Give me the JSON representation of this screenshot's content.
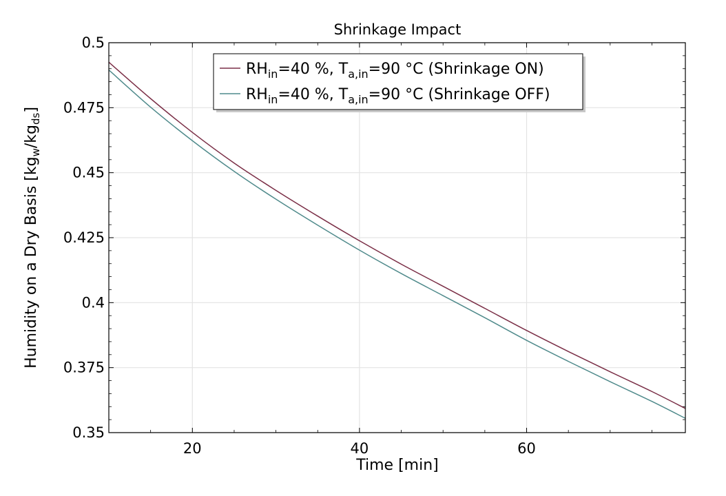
{
  "chart_data": {
    "type": "line",
    "title": "Shrinkage Impact",
    "xlabel": "Time [min]",
    "ylabel": {
      "main": "Humidity on a Dry Basis [kg",
      "sub1": "w",
      "mid": "/kg",
      "sub2": "ds",
      "end": "]"
    },
    "xlim": [
      10,
      79
    ],
    "ylim": [
      0.35,
      0.5
    ],
    "x_ticks": [
      20,
      40,
      60
    ],
    "x_tick_labels": [
      "20",
      "40",
      "60"
    ],
    "y_ticks": [
      0.35,
      0.375,
      0.4,
      0.425,
      0.45,
      0.475,
      0.5
    ],
    "y_tick_labels": [
      "0.35",
      "0.375",
      "0.4",
      "0.425",
      "0.45",
      "0.475",
      "0.5"
    ],
    "grid": true,
    "legend_position": "top-center",
    "series": [
      {
        "name": "RH_in=40 %, T_a,in=90 °C (Shrinkage ON)",
        "legend": {
          "p1": "RH",
          "sub1": "in",
          "p2": "=40 %, T",
          "sub2": "a,in",
          "p3": "=90 °C (Shrinkage ON)"
        },
        "color": "#7a2e46",
        "x": [
          10,
          15,
          20,
          25,
          30,
          35,
          40,
          45,
          50,
          55,
          60,
          65,
          70,
          75,
          79
        ],
        "y": [
          0.4925,
          0.4785,
          0.4655,
          0.4537,
          0.4432,
          0.4333,
          0.4238,
          0.4148,
          0.4063,
          0.3978,
          0.3893,
          0.3812,
          0.3734,
          0.3658,
          0.3593
        ]
      },
      {
        "name": "RH_in=40 %, T_a,in=90 °C (Shrinkage OFF)",
        "legend": {
          "p1": "RH",
          "sub1": "in",
          "p2": "=40 %, T",
          "sub2": "a,in",
          "p3": "=90 °C (Shrinkage OFF)"
        },
        "color": "#4f8a8b",
        "x": [
          10,
          15,
          20,
          25,
          30,
          35,
          40,
          45,
          50,
          55,
          60,
          65,
          70,
          75,
          79
        ],
        "y": [
          0.4895,
          0.4752,
          0.4623,
          0.4505,
          0.4398,
          0.4298,
          0.4202,
          0.4112,
          0.4027,
          0.3942,
          0.3855,
          0.3774,
          0.3696,
          0.362,
          0.3555
        ]
      }
    ]
  }
}
